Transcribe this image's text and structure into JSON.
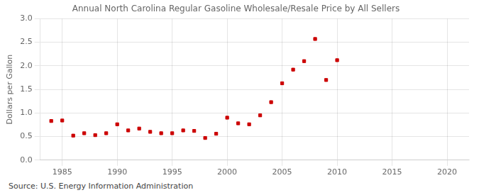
{
  "chart_data": {
    "type": "scatter",
    "title": "Annual North Carolina Regular Gasoline Wholesale/Resale Price by All Sellers",
    "ylabel": "Dollars per Gallon",
    "source": "Source: U.S. Energy Information Administration",
    "x": [
      1984,
      1985,
      1986,
      1987,
      1988,
      1989,
      1990,
      1991,
      1992,
      1993,
      1994,
      1995,
      1996,
      1997,
      1998,
      1999,
      2000,
      2001,
      2002,
      2003,
      2004,
      2005,
      2006,
      2007,
      2008,
      2009,
      2010
    ],
    "values": [
      0.83,
      0.84,
      0.52,
      0.57,
      0.53,
      0.57,
      0.76,
      0.63,
      0.67,
      0.6,
      0.57,
      0.57,
      0.63,
      0.62,
      0.47,
      0.56,
      0.9,
      0.78,
      0.76,
      0.95,
      1.23,
      1.63,
      1.92,
      2.1,
      2.57,
      1.7,
      2.12
    ],
    "color": "#cc0000",
    "marker": "square",
    "xlim": [
      1983,
      2022
    ],
    "xticks": [
      1985,
      1990,
      1995,
      2000,
      2005,
      2010,
      2015,
      2020
    ],
    "ylim": [
      0.0,
      3.0
    ],
    "yticks": [
      {
        "value": 0.0,
        "label": "0.0"
      },
      0.5,
      {
        "value": 1.0,
        "label": "1.0"
      },
      1.5,
      {
        "value": 2.0,
        "label": "2.0"
      },
      2.5,
      {
        "value": 3.0,
        "label": "3.0"
      }
    ],
    "grid": true
  }
}
